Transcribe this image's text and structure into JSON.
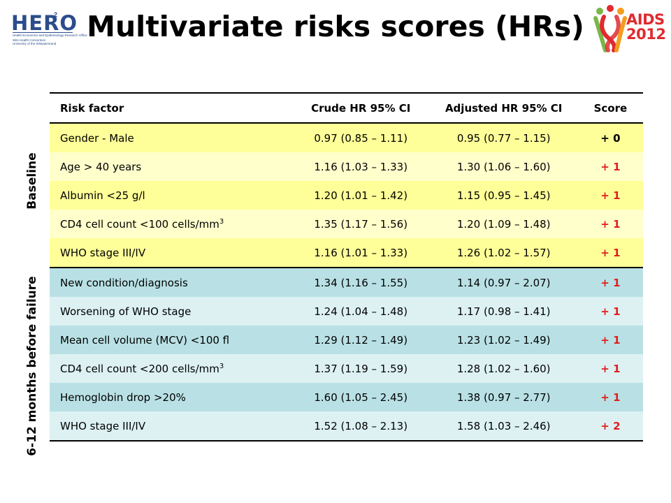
{
  "title": "Multivariate risks scores (HRs)",
  "logos": {
    "hero": {
      "name": "HERO",
      "superscript": "2",
      "line1": "Health Economics and Epidemiology Research Office",
      "line2": "Wits Health Consortium",
      "line3": "University of the Witwatersrand",
      "color": "#2b4d8c"
    },
    "aids": {
      "line1": "AIDS",
      "line2": "2012",
      "color": "#e02a2f"
    }
  },
  "side_labels": {
    "baseline": "Baseline",
    "before_failure": "6-12 months before failure"
  },
  "table": {
    "headers": {
      "factor": "Risk factor",
      "crude": "Crude HR 95% CI",
      "adjusted": "Adjusted HR 95% CI",
      "score": "Score"
    },
    "rows": [
      {
        "group": "baseline",
        "factor": "Gender - Male",
        "sup": "",
        "crude": "0.97 (0.85 – 1.11)",
        "adjusted": "0.95 (0.77 – 1.15)",
        "score": "+ 0"
      },
      {
        "group": "baseline",
        "factor": "Age > 40 years",
        "sup": "",
        "crude": "1.16 (1.03 – 1.33)",
        "adjusted": "1.30 (1.06 – 1.60)",
        "score": "+ 1"
      },
      {
        "group": "baseline",
        "factor": "Albumin <25 g/l",
        "sup": "",
        "crude": "1.20 (1.01 – 1.42)",
        "adjusted": "1.15 (0.95 – 1.45)",
        "score": "+ 1"
      },
      {
        "group": "baseline",
        "factor": "CD4 cell count <100 cells/mm",
        "sup": "3",
        "crude": "1.35 (1.17 – 1.56)",
        "adjusted": "1.20 (1.09 – 1.48)",
        "score": "+ 1"
      },
      {
        "group": "baseline",
        "factor": "WHO stage III/IV",
        "sup": "",
        "crude": "1.16 (1.01 – 1.33)",
        "adjusted": "1.26 (1.02 – 1.57)",
        "score": "+ 1"
      },
      {
        "group": "before_failure",
        "factor": "New condition/diagnosis",
        "sup": "",
        "crude": "1.34 (1.16 – 1.55)",
        "adjusted": "1.14 (0.97 – 2.07)",
        "score": "+ 1"
      },
      {
        "group": "before_failure",
        "factor": "Worsening of WHO stage",
        "sup": "",
        "crude": "1.24 (1.04 – 1.48)",
        "adjusted": "1.17 (0.98 – 1.41)",
        "score": "+ 1"
      },
      {
        "group": "before_failure",
        "factor": "Mean cell volume (MCV) <100 fl",
        "sup": "",
        "crude": "1.29 (1.12 – 1.49)",
        "adjusted": "1.23 (1.02 – 1.49)",
        "score": "+ 1"
      },
      {
        "group": "before_failure",
        "factor": "CD4 cell count <200 cells/mm",
        "sup": "3",
        "crude": "1.37 (1.19 – 1.59)",
        "adjusted": "1.28 (1.02 – 1.60)",
        "score": "+ 1"
      },
      {
        "group": "before_failure",
        "factor": "Hemoglobin drop >20%",
        "sup": "",
        "crude": "1.60 (1.05 – 2.45)",
        "adjusted": "1.38 (0.97 – 2.77)",
        "score": "+ 1"
      },
      {
        "group": "before_failure",
        "factor": "WHO stage III/IV",
        "sup": "",
        "crude": "1.52 (1.08 – 2.13)",
        "adjusted": "1.58 (1.03 – 2.46)",
        "score": "+ 2"
      }
    ]
  },
  "colors": {
    "baseline_dark": "#ffff99",
    "baseline_light": "#ffffcc",
    "before_failure_dark": "#b9e1e5",
    "before_failure_light": "#ddf1f3",
    "score_positive": "#e01e1e"
  }
}
